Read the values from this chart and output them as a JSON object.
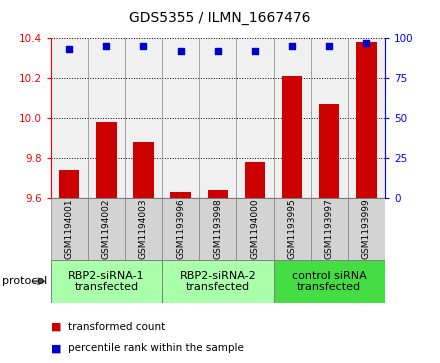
{
  "title": "GDS5355 / ILMN_1667476",
  "samples": [
    "GSM1194001",
    "GSM1194002",
    "GSM1194003",
    "GSM1193996",
    "GSM1193998",
    "GSM1194000",
    "GSM1193995",
    "GSM1193997",
    "GSM1193999"
  ],
  "transformed_count": [
    9.74,
    9.98,
    9.88,
    9.63,
    9.64,
    9.78,
    10.21,
    10.07,
    10.38
  ],
  "percentile_rank": [
    93,
    95,
    95,
    92,
    92,
    92,
    95,
    95,
    97
  ],
  "ylim_left": [
    9.6,
    10.4
  ],
  "ylim_right": [
    0,
    100
  ],
  "yticks_left": [
    9.6,
    9.8,
    10.0,
    10.2,
    10.4
  ],
  "yticks_right": [
    0,
    25,
    50,
    75,
    100
  ],
  "bar_color": "#CC0000",
  "dot_color": "#0000CC",
  "bar_bottom": 9.6,
  "plot_bg": "#f0f0f0",
  "sample_box_color": "#d3d3d3",
  "group_defs": [
    {
      "start": 0,
      "end": 3,
      "color": "#aaffaa",
      "label": "RBP2-siRNA-1\ntransfected"
    },
    {
      "start": 3,
      "end": 6,
      "color": "#aaffaa",
      "label": "RBP2-siRNA-2\ntransfected"
    },
    {
      "start": 6,
      "end": 9,
      "color": "#44dd44",
      "label": "control siRNA\ntransfected"
    }
  ],
  "protocol_label": "protocol",
  "legend_bar_label": "transformed count",
  "legend_dot_label": "percentile rank within the sample",
  "title_fontsize": 10,
  "tick_fontsize": 7.5,
  "sample_fontsize": 6.5,
  "group_fontsize": 8
}
